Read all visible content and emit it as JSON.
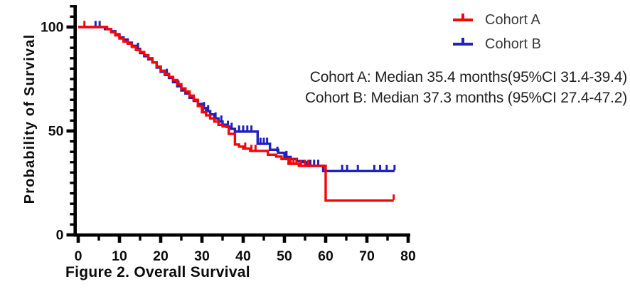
{
  "figure": {
    "caption": "Figure 2. Overall Survival",
    "background": "#ffffff"
  },
  "annotations": {
    "cohort_a": "Cohort A: Median 35.4 months(95%CI 31.4-39.4)",
    "cohort_b": "Cohort B: Median 37.3 months (95%CI 27.4-47.2)"
  },
  "chart_data": {
    "type": "line",
    "subtype": "kaplan_meier_step",
    "title": "",
    "xlabel": "",
    "ylabel": "Probability of Survival",
    "xlim": [
      0,
      80
    ],
    "ylim": [
      0,
      110
    ],
    "grid": false,
    "legend_position": "top-right",
    "axis_color": "#000000",
    "tick_label_color": "#0d0d0d",
    "x_ticks_major": [
      0,
      10,
      20,
      30,
      40,
      50,
      60,
      70,
      80
    ],
    "x_ticks_minor": [
      5,
      15,
      25,
      35,
      45,
      55,
      65,
      75
    ],
    "y_ticks_major": [
      0,
      50,
      100
    ],
    "y_ticks_minor": [
      5,
      10,
      15,
      20,
      25,
      30,
      35,
      40,
      45,
      55,
      60,
      65,
      70,
      75,
      80,
      85,
      90,
      95,
      105,
      110
    ],
    "series": [
      {
        "name": "Cohort A",
        "color": "#f50708",
        "median_months": 35.4,
        "ci95": "31.4-39.4",
        "points": [
          [
            0,
            100
          ],
          [
            7,
            99
          ],
          [
            8,
            97.5
          ],
          [
            9,
            96
          ],
          [
            10,
            94.5
          ],
          [
            11,
            93
          ],
          [
            12,
            92
          ],
          [
            13,
            90.5
          ],
          [
            14,
            89
          ],
          [
            15,
            88
          ],
          [
            16,
            86.5
          ],
          [
            17,
            85
          ],
          [
            18,
            83
          ],
          [
            19,
            81
          ],
          [
            20,
            79
          ],
          [
            21,
            77.5
          ],
          [
            22,
            76
          ],
          [
            23,
            74.5
          ],
          [
            24,
            72.5
          ],
          [
            25,
            70.5
          ],
          [
            26,
            69
          ],
          [
            27,
            67
          ],
          [
            28,
            65
          ],
          [
            29,
            62
          ],
          [
            30,
            59
          ],
          [
            31,
            57.5
          ],
          [
            32,
            56
          ],
          [
            33,
            54.5
          ],
          [
            34,
            53
          ],
          [
            35,
            52.2
          ],
          [
            36.5,
            48.6
          ],
          [
            38,
            43.5
          ],
          [
            39,
            42.5
          ],
          [
            40,
            41.5
          ],
          [
            41.7,
            40.4
          ],
          [
            46,
            38.6
          ],
          [
            48,
            37.7
          ],
          [
            49.3,
            36.5
          ],
          [
            51,
            34.2
          ],
          [
            53.5,
            33.2
          ],
          [
            60,
            16.5
          ],
          [
            76.5,
            16.5
          ]
        ],
        "censor_marks": [
          [
            1.5,
            100
          ],
          [
            30.3,
            59
          ],
          [
            40.5,
            41.5
          ],
          [
            42,
            40.4
          ],
          [
            43,
            40.4
          ],
          [
            51.5,
            34.2
          ],
          [
            52.2,
            34.2
          ],
          [
            52.9,
            34.2
          ],
          [
            54,
            33.2
          ],
          [
            55,
            33.2
          ],
          [
            55.8,
            33.2
          ],
          [
            76.5,
            16.5
          ]
        ]
      },
      {
        "name": "Cohort B",
        "color": "#2121bd",
        "median_months": 37.3,
        "ci95": "27.4-47.2",
        "points": [
          [
            0,
            100
          ],
          [
            6.5,
            99
          ],
          [
            8,
            98
          ],
          [
            9,
            96.5
          ],
          [
            10,
            95
          ],
          [
            11,
            94
          ],
          [
            12,
            92.5
          ],
          [
            13,
            91
          ],
          [
            14,
            89.5
          ],
          [
            15,
            87.5
          ],
          [
            16,
            86
          ],
          [
            17,
            84.5
          ],
          [
            18,
            83
          ],
          [
            19,
            80.5
          ],
          [
            20,
            78.5
          ],
          [
            21,
            77
          ],
          [
            22,
            75.5
          ],
          [
            23,
            73.5
          ],
          [
            24,
            71.5
          ],
          [
            25,
            69.5
          ],
          [
            26,
            68
          ],
          [
            27,
            66
          ],
          [
            28,
            64.5
          ],
          [
            29,
            63
          ],
          [
            30,
            61
          ],
          [
            31,
            59.5
          ],
          [
            32,
            58
          ],
          [
            33,
            56
          ],
          [
            34,
            54.5
          ],
          [
            35,
            53
          ],
          [
            36,
            52
          ],
          [
            37,
            51
          ],
          [
            38,
            49.7
          ],
          [
            43.5,
            43.8
          ],
          [
            46.5,
            41
          ],
          [
            48.5,
            39.5
          ],
          [
            50,
            37.5
          ],
          [
            51.5,
            36.5
          ],
          [
            53,
            35.5
          ],
          [
            54.5,
            35
          ],
          [
            55.5,
            33.2
          ],
          [
            59.4,
            30.7
          ],
          [
            76.7,
            30.7
          ]
        ],
        "censor_marks": [
          [
            4.2,
            100
          ],
          [
            5.2,
            100
          ],
          [
            14.5,
            89.5
          ],
          [
            21.5,
            77
          ],
          [
            24.3,
            71.5
          ],
          [
            30.5,
            61
          ],
          [
            31.5,
            59.5
          ],
          [
            33.3,
            56
          ],
          [
            34.7,
            54.5
          ],
          [
            36.3,
            52
          ],
          [
            37.2,
            51
          ],
          [
            39,
            49.7
          ],
          [
            40,
            49.7
          ],
          [
            41,
            49.7
          ],
          [
            42,
            49.7
          ],
          [
            44.2,
            43.8
          ],
          [
            45,
            43.8
          ],
          [
            45.8,
            43.8
          ],
          [
            48.3,
            39.5
          ],
          [
            50.5,
            37.5
          ],
          [
            56.3,
            33.2
          ],
          [
            57.2,
            33.2
          ],
          [
            58.2,
            33.2
          ],
          [
            64,
            30.7
          ],
          [
            65.2,
            30.7
          ],
          [
            67.8,
            30.7
          ],
          [
            71.8,
            30.7
          ],
          [
            73.2,
            30.7
          ],
          [
            74.8,
            30.7
          ],
          [
            76.7,
            30.7
          ]
        ]
      }
    ]
  }
}
